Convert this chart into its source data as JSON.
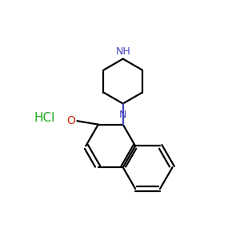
{
  "background_color": "#ffffff",
  "bond_color": "#000000",
  "N_color": "#4444bb",
  "O_color": "#cc2200",
  "HCl_color": "#22aa22",
  "HCl_label": "HCl",
  "NH_label": "NH",
  "N_label": "N",
  "O_label": "O",
  "figsize": [
    3.0,
    3.0
  ],
  "dpi": 100,
  "lw": 1.6
}
